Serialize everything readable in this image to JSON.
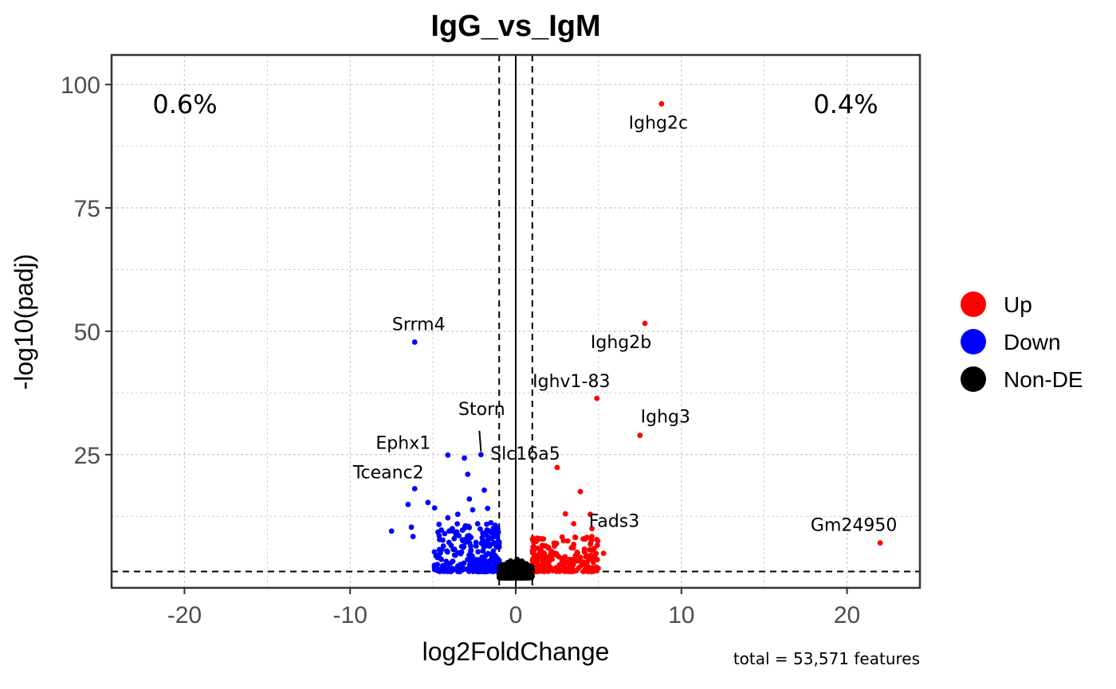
{
  "chart_data": {
    "type": "scatter",
    "title": "IgG_vs_IgM",
    "xlabel": "log2FoldChange",
    "ylabel": "-log10(padj)",
    "xlim": [
      -24.4,
      24.4
    ],
    "ylim": [
      -2.0,
      106.0
    ],
    "x_ticks": [
      -20,
      -10,
      0,
      10,
      20
    ],
    "y_ticks": [
      25,
      50,
      75,
      100
    ],
    "grid": true,
    "vlines_dashed": [
      -1,
      1
    ],
    "vline_solid": 0,
    "hline_dashed": 1.3,
    "percent_down": "0.6%",
    "percent_up": "0.4%",
    "caption": "total = 53,571 features",
    "legend": {
      "position": "right",
      "entries": [
        {
          "name": "Up",
          "color": "#ff0000"
        },
        {
          "name": "Down",
          "color": "#0000ff"
        },
        {
          "name": "Non-DE",
          "color": "#000000"
        }
      ]
    },
    "labeled_genes": [
      {
        "name": "Ighg2c",
        "x": 8.8,
        "y": 96.1,
        "group": "Up"
      },
      {
        "name": "Ighg2b",
        "x": 7.8,
        "y": 51.6,
        "group": "Up"
      },
      {
        "name": "Ighv1-83",
        "x": 4.9,
        "y": 36.4,
        "group": "Up"
      },
      {
        "name": "Ighg3",
        "x": 7.5,
        "y": 28.9,
        "group": "Up"
      },
      {
        "name": "Slc16a5",
        "x": 2.5,
        "y": 22.4,
        "group": "Up"
      },
      {
        "name": "Fads3",
        "x": 4.5,
        "y": 12.9,
        "group": "Up"
      },
      {
        "name": "Gm24950",
        "x": 22.0,
        "y": 7.1,
        "group": "Up"
      },
      {
        "name": "Srrm4",
        "x": -6.1,
        "y": 47.8,
        "group": "Down"
      },
      {
        "name": "Storn",
        "x": -2.1,
        "y": 25.0,
        "group": "Down"
      },
      {
        "name": "Ephx1",
        "x": -4.1,
        "y": 24.9,
        "group": "Down"
      },
      {
        "name": "Tceanc2",
        "x": -6.1,
        "y": 18.1,
        "group": "Down"
      }
    ],
    "extra_points": {
      "Up": [
        [
          3.9,
          17.5
        ],
        [
          3.0,
          13.0
        ],
        [
          3.5,
          11.0
        ],
        [
          4.6,
          10.0
        ],
        [
          5.3,
          5.0
        ],
        [
          4.2,
          7.9
        ],
        [
          3.5,
          6.8
        ],
        [
          2.8,
          8.3
        ]
      ],
      "Down": [
        [
          -3.1,
          24.3
        ],
        [
          -2.9,
          21.0
        ],
        [
          -2.8,
          16.0
        ],
        [
          -1.9,
          17.8
        ],
        [
          -2.6,
          13.8
        ],
        [
          -5.3,
          15.3
        ],
        [
          -4.9,
          14.2
        ],
        [
          -6.5,
          14.9
        ],
        [
          -7.5,
          9.5
        ],
        [
          -6.3,
          10.3
        ],
        [
          -6.2,
          8.4
        ],
        [
          -4.1,
          12.2
        ],
        [
          -3.5,
          12.9
        ],
        [
          -1.5,
          11.2
        ],
        [
          -2.3,
          11.0
        ],
        [
          -1.7,
          14.1
        ],
        [
          -4.6,
          7.8
        ],
        [
          -3.9,
          6.6
        ],
        [
          -2.4,
          7.2
        ],
        [
          -1.1,
          9.6
        ]
      ]
    },
    "clusters": {
      "Up": {
        "x": [
          1.0,
          5.0
        ],
        "y": [
          1.3,
          8.5
        ],
        "n": 260
      },
      "Down": {
        "x": [
          -5.0,
          -1.0
        ],
        "y": [
          1.3,
          11.0
        ],
        "n": 260
      },
      "Non-DE": {
        "x": [
          -1.0,
          1.0
        ],
        "y": [
          0.0,
          4.0
        ],
        "n": 420
      }
    }
  }
}
